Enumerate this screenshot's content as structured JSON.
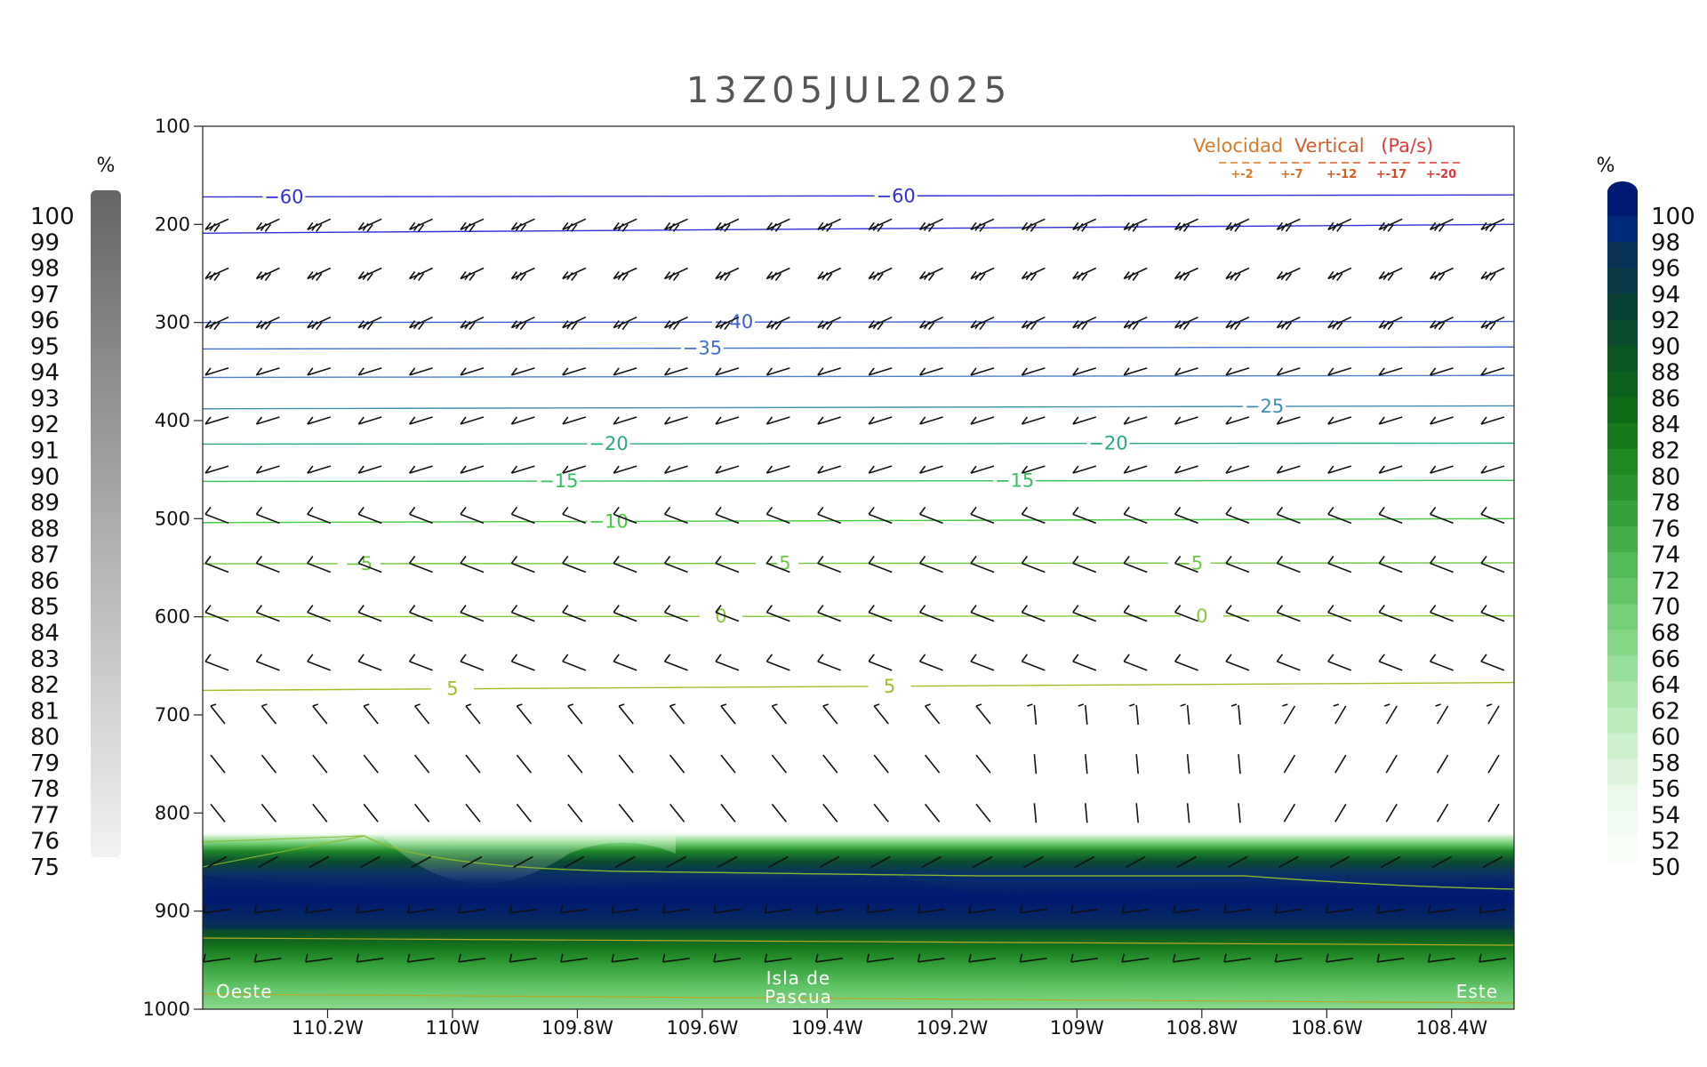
{
  "chart_data": {
    "type": "contour",
    "title": "13Z05JUL2025",
    "x_ticks": [
      "110.2W",
      "110W",
      "109.8W",
      "109.6W",
      "109.4W",
      "109.2W",
      "109W",
      "108.8W",
      "108.6W",
      "108.4W"
    ],
    "x_values": [
      -110.2,
      -110.0,
      -109.8,
      -109.6,
      -109.4,
      -109.2,
      -109.0,
      -108.8,
      -108.6,
      -108.4
    ],
    "xlim": [
      -110.4,
      -108.3
    ],
    "y_ticks": [
      "100",
      "200",
      "300",
      "400",
      "500",
      "600",
      "700",
      "800",
      "900",
      "1000"
    ],
    "ylim": [
      100,
      1000
    ],
    "left_colorbar": {
      "unit": "%",
      "labels": [
        "100",
        "99",
        "98",
        "97",
        "96",
        "95",
        "94",
        "93",
        "92",
        "91",
        "90",
        "89",
        "88",
        "87",
        "86",
        "85",
        "84",
        "83",
        "82",
        "81",
        "80",
        "79",
        "78",
        "77",
        "76",
        "75"
      ],
      "color_top": "#666666",
      "color_bottom": "#f2f2f2"
    },
    "right_colorbar": {
      "unit": "%",
      "labels": [
        "100",
        "98",
        "96",
        "94",
        "92",
        "90",
        "88",
        "86",
        "84",
        "82",
        "80",
        "78",
        "76",
        "74",
        "72",
        "70",
        "68",
        "66",
        "64",
        "62",
        "60",
        "58",
        "56",
        "54",
        "52",
        "50"
      ],
      "colors": [
        "#001a73",
        "#002a7a",
        "#0a3358",
        "#0b3a48",
        "#0b4238",
        "#0b4a2c",
        "#0b5523",
        "#0c611c",
        "#0e6c18",
        "#177a1d",
        "#208823",
        "#2a9530",
        "#36a23d",
        "#44ae4b",
        "#52ba59",
        "#63c568",
        "#74cf78",
        "#86d888",
        "#98df99",
        "#aae6aa",
        "#bbecbb",
        "#ccf1cc",
        "#ddf5dd",
        "#eaf9ea",
        "#f3fcf3",
        "#f9fef9"
      ]
    },
    "temperature_contours": [
      {
        "value": -60,
        "label": "-60",
        "color": "#3030d8",
        "p_left": 172,
        "p_right": 170,
        "label_lons": [
          -110.27,
          -109.29
        ]
      },
      {
        "value": -60,
        "label": "",
        "color": "#3030d8",
        "p_left": 209,
        "p_right": 200,
        "label_lons": []
      },
      {
        "value": -40,
        "label": "-40",
        "color": "#3a5ed0",
        "p_left": 300,
        "p_right": 299,
        "label_lons": [
          -109.55
        ]
      },
      {
        "value": -35,
        "label": "-35",
        "color": "#3f6fd0",
        "p_left": 327,
        "p_right": 325,
        "label_lons": [
          -109.6
        ]
      },
      {
        "value": -30,
        "label": "",
        "color": "#4a7ec8",
        "p_left": 356,
        "p_right": 354,
        "label_lons": []
      },
      {
        "value": -25,
        "label": "-25",
        "color": "#3f8fb0",
        "p_left": 388,
        "p_right": 385,
        "label_lons": [
          -108.7
        ]
      },
      {
        "value": -20,
        "label": "-20",
        "color": "#2aa886",
        "p_left": 424,
        "p_right": 423,
        "label_lons": [
          -109.75,
          -108.95
        ]
      },
      {
        "value": -15,
        "label": "-15",
        "color": "#35c060",
        "p_left": 462,
        "p_right": 461,
        "label_lons": [
          -109.83,
          -109.1
        ]
      },
      {
        "value": -10,
        "label": "-10",
        "color": "#45cc40",
        "p_left": 504,
        "p_right": 500,
        "label_lons": [
          -109.75
        ]
      },
      {
        "value": -5,
        "label": "-5",
        "color": "#70c840",
        "p_left": 546,
        "p_right": 545,
        "label_lons": [
          -110.15,
          -109.48,
          -108.82
        ]
      },
      {
        "value": 0,
        "label": "0",
        "color": "#8ac83a",
        "p_left": 600,
        "p_right": 599,
        "label_lons": [
          -109.57,
          -108.8
        ]
      },
      {
        "value": 5,
        "label": "5",
        "color": "#9ebf2a",
        "p_left": 675,
        "p_right": 667,
        "label_lons": [
          -110.0,
          -109.3
        ]
      }
    ],
    "legend": {
      "title_left": "Velocidad",
      "title_right": "Vertical",
      "unit": "(Pa/s)",
      "items": [
        "+-2",
        "+-7",
        "+-12",
        "+-17",
        "+-20"
      ],
      "colors": [
        "#e07a20",
        "#d96a20",
        "#d85a20",
        "#d84828",
        "#e03838"
      ],
      "position": "top-right"
    },
    "annotations": {
      "west": "Oeste",
      "center_line1": "Isla de",
      "center_line2": "Pascua",
      "east": "Este"
    },
    "grid": false
  }
}
